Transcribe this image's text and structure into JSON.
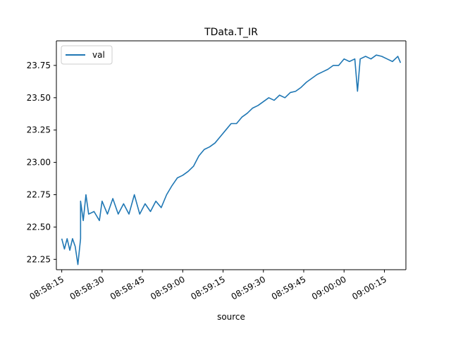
{
  "chart_data": {
    "type": "line",
    "title": "TData.T_IR",
    "xlabel": "source",
    "ylabel": "",
    "x_range": [
      "08:58:13",
      "09:00:23"
    ],
    "ylim": [
      22.17,
      23.94
    ],
    "x_ticks": [
      "08:58:15",
      "08:58:30",
      "08:58:45",
      "08:59:00",
      "08:59:15",
      "08:59:30",
      "08:59:45",
      "09:00:00",
      "09:00:15"
    ],
    "y_ticks": [
      "22.25",
      "22.50",
      "22.75",
      "23.00",
      "23.25",
      "23.50",
      "23.75"
    ],
    "grid": false,
    "legend_position": "top-left",
    "series": [
      {
        "name": "val",
        "color": "#1f77b4",
        "points": [
          [
            "08:58:15",
            22.41
          ],
          [
            "08:58:16",
            22.33
          ],
          [
            "08:58:17",
            22.41
          ],
          [
            "08:58:18",
            22.32
          ],
          [
            "08:58:19",
            22.41
          ],
          [
            "08:58:20",
            22.35
          ],
          [
            "08:58:21",
            22.21
          ],
          [
            "08:58:22",
            22.41
          ],
          [
            "08:58:22",
            22.7
          ],
          [
            "08:58:23",
            22.55
          ],
          [
            "08:58:24",
            22.75
          ],
          [
            "08:58:25",
            22.6
          ],
          [
            "08:58:27",
            22.62
          ],
          [
            "08:58:29",
            22.55
          ],
          [
            "08:58:30",
            22.7
          ],
          [
            "08:58:32",
            22.6
          ],
          [
            "08:58:34",
            22.72
          ],
          [
            "08:58:36",
            22.6
          ],
          [
            "08:58:38",
            22.68
          ],
          [
            "08:58:40",
            22.6
          ],
          [
            "08:58:42",
            22.75
          ],
          [
            "08:58:44",
            22.6
          ],
          [
            "08:58:46",
            22.68
          ],
          [
            "08:58:48",
            22.62
          ],
          [
            "08:58:50",
            22.7
          ],
          [
            "08:58:52",
            22.65
          ],
          [
            "08:58:54",
            22.75
          ],
          [
            "08:58:56",
            22.82
          ],
          [
            "08:58:58",
            22.88
          ],
          [
            "08:59:00",
            22.9
          ],
          [
            "08:59:02",
            22.93
          ],
          [
            "08:59:04",
            22.97
          ],
          [
            "08:59:06",
            23.05
          ],
          [
            "08:59:08",
            23.1
          ],
          [
            "08:59:10",
            23.12
          ],
          [
            "08:59:12",
            23.15
          ],
          [
            "08:59:14",
            23.2
          ],
          [
            "08:59:16",
            23.25
          ],
          [
            "08:59:18",
            23.3
          ],
          [
            "08:59:20",
            23.3
          ],
          [
            "08:59:22",
            23.35
          ],
          [
            "08:59:24",
            23.38
          ],
          [
            "08:59:26",
            23.42
          ],
          [
            "08:59:28",
            23.44
          ],
          [
            "08:59:30",
            23.47
          ],
          [
            "08:59:32",
            23.5
          ],
          [
            "08:59:34",
            23.48
          ],
          [
            "08:59:36",
            23.52
          ],
          [
            "08:59:38",
            23.5
          ],
          [
            "08:59:40",
            23.54
          ],
          [
            "08:59:42",
            23.55
          ],
          [
            "08:59:44",
            23.58
          ],
          [
            "08:59:46",
            23.62
          ],
          [
            "08:59:48",
            23.65
          ],
          [
            "08:59:50",
            23.68
          ],
          [
            "08:59:52",
            23.7
          ],
          [
            "08:59:54",
            23.72
          ],
          [
            "08:59:56",
            23.75
          ],
          [
            "08:59:58",
            23.75
          ],
          [
            "09:00:00",
            23.8
          ],
          [
            "09:00:02",
            23.78
          ],
          [
            "09:00:04",
            23.8
          ],
          [
            "09:00:05",
            23.55
          ],
          [
            "09:00:06",
            23.8
          ],
          [
            "09:00:08",
            23.82
          ],
          [
            "09:00:10",
            23.8
          ],
          [
            "09:00:12",
            23.83
          ],
          [
            "09:00:14",
            23.82
          ],
          [
            "09:00:16",
            23.8
          ],
          [
            "09:00:18",
            23.78
          ],
          [
            "09:00:20",
            23.82
          ],
          [
            "09:00:21",
            23.77
          ]
        ]
      }
    ]
  }
}
